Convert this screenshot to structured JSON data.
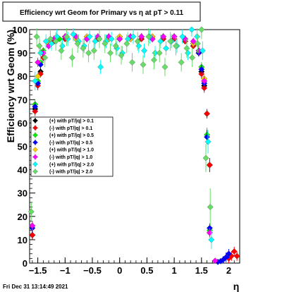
{
  "chart_data": {
    "type": "scatter",
    "title": "Efficiency wrt Geom for Primary vs    η  at pT > 0.11",
    "xlabel": "η",
    "ylabel": "Efficiency wrt Geom (%)",
    "xlim": [
      -1.65,
      2.2
    ],
    "ylim": [
      0,
      100
    ],
    "grid": true,
    "legend_position": "left-middle",
    "x_ticks": [
      {
        "v": -1.5,
        "label": "−1.5"
      },
      {
        "v": -1.0,
        "label": "−1"
      },
      {
        "v": -0.5,
        "label": "−0.5"
      },
      {
        "v": 0.0,
        "label": "0"
      },
      {
        "v": 0.5,
        "label": "0.5"
      },
      {
        "v": 1.0,
        "label": "1"
      },
      {
        "v": 1.5,
        "label": "1.5"
      },
      {
        "v": 2.0,
        "label": "2"
      }
    ],
    "y_ticks": [
      {
        "v": 0,
        "label": "0"
      },
      {
        "v": 10,
        "label": "10"
      },
      {
        "v": 20,
        "label": "20"
      },
      {
        "v": 30,
        "label": "30"
      },
      {
        "v": 40,
        "label": "40"
      },
      {
        "v": 50,
        "label": "50"
      },
      {
        "v": 60,
        "label": "60"
      },
      {
        "v": 70,
        "label": "70"
      },
      {
        "v": 80,
        "label": "80"
      },
      {
        "v": 90,
        "label": "90"
      },
      {
        "v": 100,
        "label": "100"
      }
    ],
    "series": [
      {
        "name": "(+) with pT/|q| > 0.1",
        "color": "#000000",
        "x": [
          -1.6,
          -1.55,
          -1.5,
          -1.45,
          -1.4,
          -1.3,
          -1.2,
          -1.0,
          -0.8,
          -0.6,
          -0.4,
          -0.2,
          0.0,
          0.2,
          0.4,
          0.6,
          0.8,
          1.0,
          1.2,
          1.35,
          1.45,
          1.5,
          1.55,
          1.6,
          1.65
        ],
        "y": [
          12,
          66,
          77,
          82,
          88,
          93,
          95,
          96,
          96,
          96,
          96,
          96,
          96,
          96,
          96,
          96,
          96,
          96,
          95,
          93,
          90,
          82,
          76,
          64,
          42
        ],
        "err": [
          2,
          2,
          2,
          1.5,
          1.5,
          1,
          1,
          1,
          1,
          1,
          1,
          1,
          1,
          1,
          1,
          1,
          1,
          1,
          1,
          1,
          1.5,
          2,
          2,
          2,
          3
        ]
      },
      {
        "name": "(-) with pT/|q| > 0.1",
        "color": "#ff0000",
        "x": [
          -1.6,
          -1.55,
          -1.5,
          -1.45,
          -1.4,
          -1.3,
          -1.2,
          -1.0,
          -0.8,
          -0.6,
          -0.4,
          -0.2,
          0.0,
          0.2,
          0.4,
          0.6,
          0.8,
          1.0,
          1.2,
          1.35,
          1.45,
          1.5,
          1.55,
          1.6,
          1.65,
          2.0,
          2.05,
          2.1,
          2.15
        ],
        "y": [
          12,
          65,
          76,
          81,
          88,
          93,
          95,
          96,
          96,
          96,
          96,
          96,
          96,
          96,
          96,
          96,
          96,
          96,
          95,
          93,
          90,
          81,
          75,
          64,
          42,
          2,
          3,
          5,
          3
        ],
        "err": [
          2,
          2,
          2,
          1.5,
          1.5,
          1,
          1,
          1,
          1,
          1,
          1,
          1,
          1,
          1,
          1,
          1,
          1,
          1,
          1,
          1,
          1.5,
          2,
          2,
          2,
          3,
          2,
          2,
          2,
          2
        ]
      },
      {
        "name": "(+) with pT/|q| > 0.5",
        "color": "#00ee00",
        "x": [
          -1.6,
          -1.55,
          -1.5,
          -1.45,
          -1.4,
          -1.3,
          -1.2,
          -1.1,
          -1.0,
          -0.8,
          -0.6,
          -0.4,
          -0.2,
          0.0,
          0.2,
          0.4,
          0.6,
          0.8,
          1.0,
          1.2,
          1.35,
          1.45,
          1.5,
          1.55,
          1.6,
          1.65
        ],
        "y": [
          16,
          68,
          78,
          86,
          91,
          94,
          96,
          96,
          97,
          97,
          97,
          97,
          97,
          97,
          97,
          97,
          97,
          97,
          97,
          96,
          94,
          91,
          84,
          78,
          55,
          14
        ],
        "err": [
          2,
          2,
          2,
          1.5,
          1.5,
          1,
          1,
          1,
          1,
          1,
          1,
          1,
          1,
          1,
          1,
          1,
          1,
          1,
          1,
          1,
          1,
          1.5,
          2,
          2,
          3,
          2
        ]
      },
      {
        "name": "(-) with pT/|q| > 0.5",
        "color": "#0000ff",
        "x": [
          -1.6,
          -1.55,
          -1.5,
          -1.45,
          -1.4,
          -1.3,
          -1.2,
          -1.0,
          -0.8,
          -0.6,
          -0.4,
          -0.2,
          0.0,
          0.2,
          0.4,
          0.6,
          0.8,
          1.0,
          1.2,
          1.35,
          1.45,
          1.5,
          1.55,
          1.6,
          1.65,
          1.8,
          1.85,
          1.9,
          1.95,
          2.0
        ],
        "y": [
          15,
          67,
          77,
          85,
          90,
          94,
          96,
          97,
          97,
          97,
          97,
          97,
          97,
          97,
          97,
          97,
          97,
          97,
          96,
          94,
          90,
          83,
          77,
          54,
          15,
          0.5,
          0.8,
          1.5,
          2.5,
          4
        ],
        "err": [
          2,
          2,
          2,
          1.5,
          1.5,
          1,
          1,
          1,
          1,
          1,
          1,
          1,
          1,
          1,
          1,
          1,
          1,
          1,
          1,
          1,
          1.5,
          2,
          2,
          3,
          2,
          1,
          1,
          1.5,
          2,
          2
        ]
      },
      {
        "name": "(+) with pT/|q| > 1.0",
        "color": "#ffcc00",
        "x": [
          -1.6,
          -1.5,
          -1.4,
          -1.3,
          -1.2,
          -1.0,
          -0.8,
          -0.6,
          -0.4,
          -0.2,
          0.0,
          0.2,
          0.4,
          0.6,
          0.8,
          1.0,
          1.2,
          1.35,
          1.45,
          1.55,
          1.65
        ],
        "y": [
          16,
          80,
          90,
          94,
          96,
          97,
          96,
          97,
          97,
          96,
          97,
          96,
          97,
          97,
          97,
          97,
          96,
          94,
          91,
          79,
          13
        ],
        "err": [
          2,
          2,
          2,
          1.5,
          1.5,
          1.5,
          1.5,
          1.5,
          1.5,
          1.5,
          1.5,
          1.5,
          1.5,
          1.5,
          1.5,
          1.5,
          1.5,
          1.5,
          2,
          2,
          2
        ]
      },
      {
        "name": "(-) with pT/|q| > 1.0",
        "color": "#ff00ff",
        "x": [
          -1.6,
          -1.5,
          -1.4,
          -1.3,
          -1.2,
          -1.0,
          -0.8,
          -0.6,
          -0.4,
          -0.2,
          0.0,
          0.2,
          0.4,
          0.6,
          0.8,
          1.0,
          1.2,
          1.35,
          1.45,
          1.55,
          1.65,
          1.75
        ],
        "y": [
          16,
          86,
          90,
          93,
          96,
          97,
          97,
          96,
          97,
          97,
          96,
          97,
          97,
          96,
          97,
          97,
          96,
          95,
          91,
          78,
          13,
          1
        ],
        "err": [
          2,
          2,
          2,
          1.5,
          1.5,
          1.5,
          1.5,
          1.5,
          1.5,
          1.5,
          1.5,
          1.5,
          1.5,
          1.5,
          1.5,
          1.5,
          1.5,
          1.5,
          2,
          2,
          2,
          1
        ]
      },
      {
        "name": "(+) with pT/|q| > 2.0",
        "color": "#00ffff",
        "x": [
          -1.55,
          -1.45,
          -1.35,
          -1.25,
          -1.15,
          -1.05,
          -0.95,
          -0.85,
          -0.75,
          -0.65,
          -0.55,
          -0.45,
          -0.35,
          -0.25,
          -0.15,
          -0.05,
          0.05,
          0.15,
          0.25,
          0.35,
          0.45,
          0.55,
          0.65,
          0.75,
          0.85,
          0.95,
          1.05,
          1.15,
          1.25,
          1.32,
          1.42,
          1.52,
          1.62,
          1.68
        ],
        "y": [
          78,
          90,
          95,
          94,
          97,
          93,
          96,
          98,
          95,
          93,
          97,
          95,
          84,
          95,
          96,
          92,
          90,
          96,
          97,
          93,
          91,
          97,
          90,
          95,
          92,
          95,
          93,
          97,
          90,
          100,
          97,
          91,
          52,
          10
        ],
        "err": [
          4,
          4,
          3,
          3,
          3,
          3,
          3,
          3,
          3,
          3,
          3,
          3,
          3,
          3,
          3,
          3,
          3,
          3,
          3,
          3,
          3,
          3,
          3,
          3,
          3,
          3,
          3,
          3,
          3,
          3,
          4,
          4,
          5,
          4
        ]
      },
      {
        "name": "(-) with pT/|q| > 2.0",
        "color": "#66dd66",
        "x": [
          -1.62,
          -1.52,
          -1.47,
          -1.37,
          -1.27,
          -1.17,
          -1.07,
          -0.97,
          -0.87,
          -0.77,
          -0.67,
          -0.57,
          -0.47,
          -0.37,
          -0.27,
          -0.17,
          -0.07,
          0.03,
          0.13,
          0.23,
          0.33,
          0.43,
          0.53,
          0.63,
          0.73,
          0.83,
          0.93,
          1.03,
          1.13,
          1.23,
          1.33,
          1.43,
          1.5,
          1.58,
          1.66
        ],
        "y": [
          22,
          97,
          93,
          88,
          96,
          95,
          91,
          97,
          88,
          94,
          92,
          90,
          91,
          96,
          94,
          90,
          93,
          89,
          94,
          86,
          95,
          85,
          97,
          87,
          90,
          84,
          95,
          93,
          86,
          92,
          88,
          94,
          100,
          45,
          24
        ],
        "err": [
          4,
          4,
          4,
          4,
          4,
          4,
          4,
          4,
          4,
          4,
          4,
          4,
          4,
          4,
          4,
          4,
          4,
          4,
          4,
          4,
          4,
          4,
          4,
          4,
          4,
          4,
          4,
          4,
          4,
          4,
          4,
          4,
          4,
          6,
          8
        ]
      }
    ]
  },
  "timestamp": "Fri Dec 31 13:14:49 2021"
}
